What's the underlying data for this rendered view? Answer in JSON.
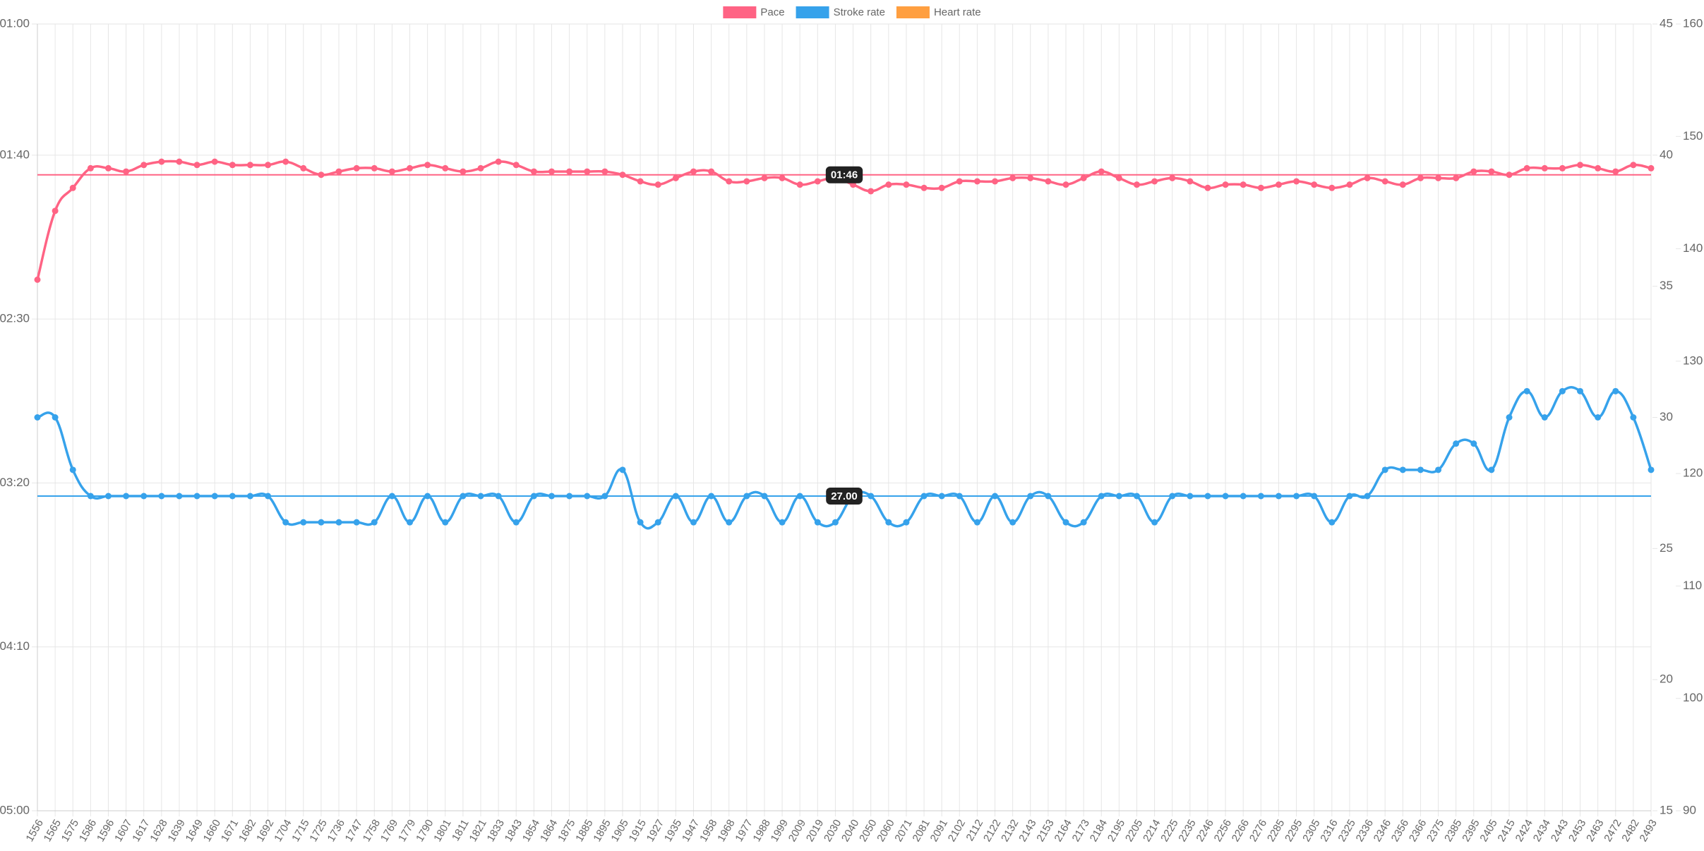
{
  "chart_data": {
    "type": "line",
    "categories": [
      "1556",
      "1565",
      "1575",
      "1586",
      "1596",
      "1607",
      "1617",
      "1628",
      "1639",
      "1649",
      "1660",
      "1671",
      "1682",
      "1692",
      "1704",
      "1715",
      "1725",
      "1736",
      "1747",
      "1758",
      "1769",
      "1779",
      "1790",
      "1801",
      "1811",
      "1821",
      "1833",
      "1843",
      "1854",
      "1864",
      "1875",
      "1885",
      "1895",
      "1905",
      "1915",
      "1927",
      "1935",
      "1947",
      "1958",
      "1968",
      "1977",
      "1988",
      "1999",
      "2009",
      "2019",
      "2030",
      "2040",
      "2050",
      "2060",
      "2071",
      "2081",
      "2091",
      "2102",
      "2112",
      "2122",
      "2132",
      "2143",
      "2153",
      "2164",
      "2173",
      "2184",
      "2195",
      "2205",
      "2214",
      "2225",
      "2235",
      "2246",
      "2256",
      "2266",
      "2276",
      "2285",
      "2295",
      "2305",
      "2316",
      "2325",
      "2336",
      "2346",
      "2356",
      "2366",
      "2375",
      "2385",
      "2395",
      "2405",
      "2415",
      "2424",
      "2434",
      "2443",
      "2453",
      "2463",
      "2472",
      "2482",
      "2493"
    ],
    "series": [
      {
        "name": "Pace",
        "color": "#ff6384",
        "axis": "y",
        "values": [
          138,
          117,
          110,
          104,
          104,
          105,
          103,
          102,
          102,
          103,
          102,
          103,
          103,
          103,
          102,
          104,
          106,
          105,
          104,
          104,
          105,
          104,
          103,
          104,
          105,
          104,
          102,
          103,
          105,
          105,
          105,
          105,
          105,
          106,
          108,
          109,
          107,
          105,
          105,
          108,
          108,
          107,
          107,
          109,
          108,
          107,
          109,
          111,
          109,
          109,
          110,
          110,
          108,
          108,
          108,
          107,
          107,
          108,
          109,
          107,
          105,
          107,
          109,
          108,
          107,
          108,
          110,
          109,
          109,
          110,
          109,
          108,
          109,
          110,
          109,
          107,
          108,
          109,
          107,
          107,
          107,
          105,
          105,
          106,
          104,
          104,
          104,
          103,
          104,
          105,
          103,
          104
        ]
      },
      {
        "name": "Stroke rate",
        "color": "#36a2eb",
        "axis": "y2",
        "values": [
          30,
          30,
          28,
          27,
          27,
          27,
          27,
          27,
          27,
          27,
          27,
          27,
          27,
          27,
          26,
          26,
          26,
          26,
          26,
          26,
          27,
          26,
          27,
          26,
          27,
          27,
          27,
          26,
          27,
          27,
          27,
          27,
          27,
          28,
          26,
          26,
          27,
          26,
          27,
          26,
          27,
          27,
          26,
          27,
          26,
          26,
          27,
          27,
          26,
          26,
          27,
          27,
          27,
          26,
          27,
          26,
          27,
          27,
          26,
          26,
          27,
          27,
          27,
          26,
          27,
          27,
          27,
          27,
          27,
          27,
          27,
          27,
          27,
          26,
          27,
          27,
          28,
          28,
          28,
          28,
          29,
          29,
          28,
          30,
          31,
          30,
          31,
          31,
          30,
          31,
          30,
          28
        ]
      },
      {
        "name": "Heart rate",
        "color": "#ff9f40",
        "axis": "y3",
        "values": [
          null,
          null,
          null,
          null,
          null,
          null,
          null,
          null,
          null,
          null,
          null,
          null,
          null,
          null,
          null,
          null,
          null,
          null,
          null,
          null,
          null,
          null,
          null,
          null,
          null,
          null,
          null,
          null,
          null,
          null,
          null,
          null,
          null,
          null,
          null,
          null,
          null,
          null,
          null,
          null,
          null,
          null,
          null,
          null,
          null,
          null,
          null,
          null,
          null,
          null,
          null,
          null,
          null,
          null,
          null,
          null,
          null,
          null,
          null,
          null,
          null,
          null,
          null,
          null,
          null,
          null,
          null,
          null,
          null,
          null,
          null,
          null,
          null,
          null,
          null,
          null,
          null,
          null,
          null,
          null,
          null,
          null,
          null,
          null,
          null,
          null,
          null,
          null,
          null,
          null,
          null,
          null
        ]
      }
    ],
    "ylim": [
      300,
      60
    ],
    "yticks": [
      {
        "value": 60,
        "label": "01:00"
      },
      {
        "value": 100,
        "label": "01:40"
      },
      {
        "value": 150,
        "label": "02:30"
      },
      {
        "value": 200,
        "label": "03:20"
      },
      {
        "value": 250,
        "label": "04:10"
      },
      {
        "value": 300,
        "label": "05:00"
      }
    ],
    "y2lim": [
      15,
      45
    ],
    "y2ticks": [
      15,
      20,
      25,
      30,
      35,
      40,
      45
    ],
    "y3lim": [
      90,
      160
    ],
    "y3ticks": [
      90,
      100,
      110,
      120,
      130,
      140,
      150,
      160
    ],
    "grid": true,
    "legend": "top",
    "annotations": [
      {
        "axis": "y",
        "color": "#ff6384",
        "value": 106,
        "label": "01:46"
      },
      {
        "axis": "y2",
        "color": "#36a2eb",
        "value": 27,
        "label": "27.00"
      }
    ]
  }
}
